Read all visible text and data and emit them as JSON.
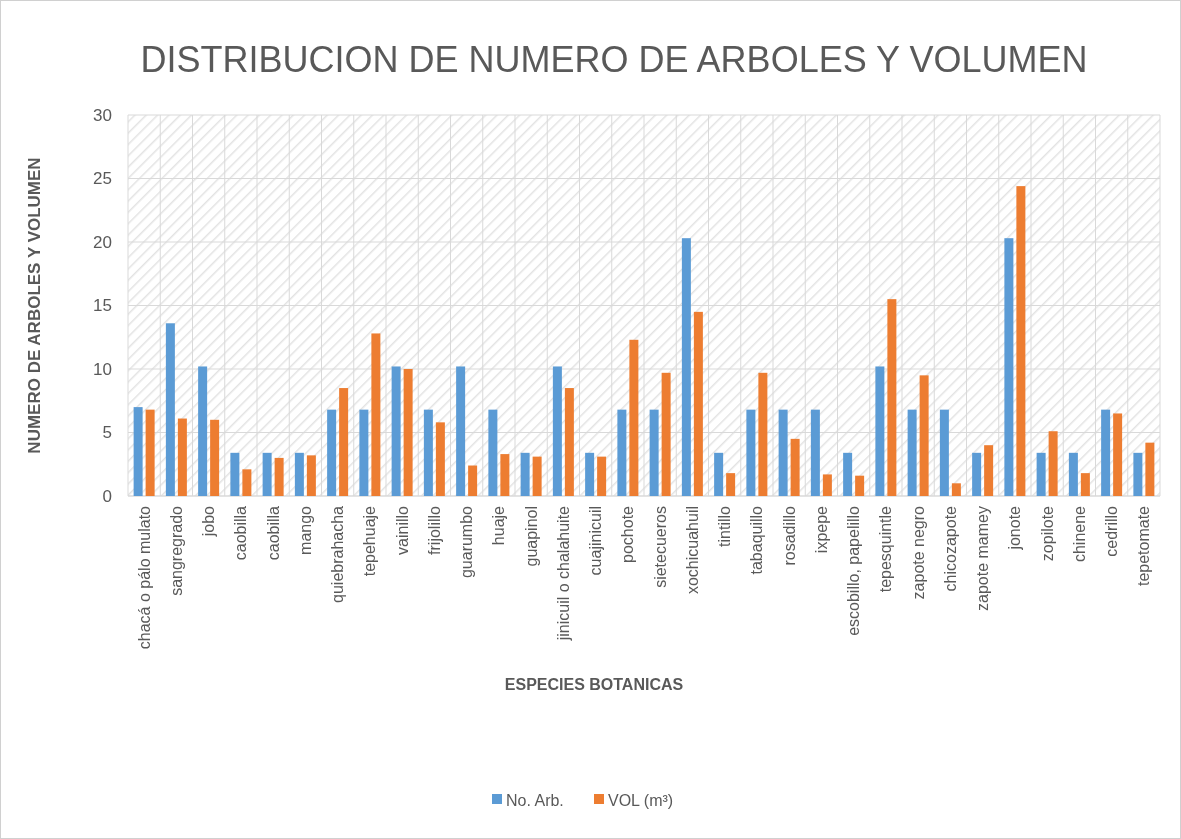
{
  "chart_data": {
    "type": "bar",
    "title": "DISTRIBUCION DE NUMERO DE ARBOLES Y VOLUMEN",
    "xlabel": "ESPECIES BOTANICAS",
    "ylabel": "NUMERO DE ARBOLES Y VOLUMEN",
    "categories": [
      "chacá o pálo mulato",
      "sangregrado",
      "jobo",
      "caobilla",
      "caobilla",
      "mango",
      "quiebrahacha",
      "tepehuaje",
      "vainillo",
      "frijolillo",
      "guarumbo",
      "huaje",
      "guapinol",
      "jinicuil o chalahuite",
      "cuajinicuil",
      "pochote",
      "sietecueros",
      "xochicuahuil",
      "tintillo",
      "tabaquillo",
      "rosadillo",
      "ixpepe",
      "escobillo, papelillo",
      "tepesquintle",
      "zapote negro",
      "chicozapote",
      "zapote mamey",
      "jonote",
      "zopilote",
      "chinene",
      "cedrillo",
      "tepetomate"
    ],
    "series": [
      {
        "name": "No. Arb.",
        "color": "#5b9bd5",
        "values": [
          7.0,
          13.6,
          10.2,
          3.4,
          3.4,
          3.4,
          6.8,
          6.8,
          10.2,
          6.8,
          10.2,
          6.8,
          3.4,
          10.2,
          3.4,
          6.8,
          6.8,
          20.3,
          3.4,
          6.8,
          6.8,
          6.8,
          3.4,
          10.2,
          6.8,
          6.8,
          3.4,
          20.3,
          3.4,
          3.4,
          6.8,
          3.4
        ]
      },
      {
        "name": "VOL (m³)",
        "color": "#ed7d31",
        "values": [
          6.8,
          6.1,
          6.0,
          2.1,
          3.0,
          3.2,
          8.5,
          12.8,
          10.0,
          5.8,
          2.4,
          3.3,
          3.1,
          8.5,
          3.1,
          12.3,
          9.7,
          14.5,
          1.8,
          9.7,
          4.5,
          1.7,
          1.6,
          15.5,
          9.5,
          1.0,
          4.0,
          24.4,
          5.1,
          1.8,
          6.5,
          4.2
        ]
      }
    ],
    "ylim": [
      0,
      30
    ],
    "yticks": [
      0,
      5,
      10,
      15,
      20,
      25,
      30
    ],
    "grid": true,
    "legend": "bottom"
  }
}
